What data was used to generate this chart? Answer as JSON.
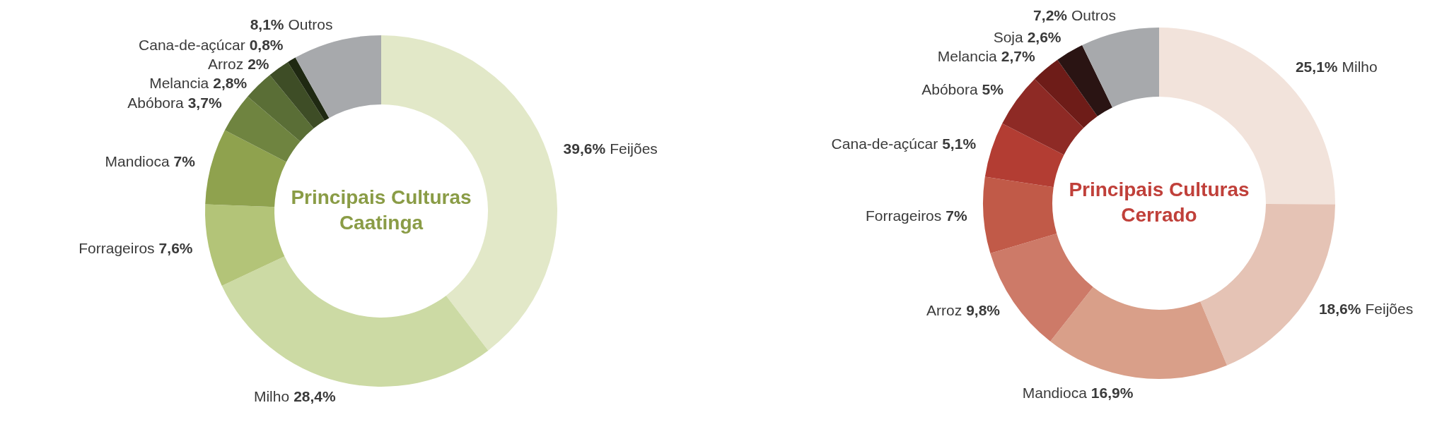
{
  "chart_data": [
    {
      "type": "donut",
      "title": "Principais Culturas",
      "subtitle": "Caatinga",
      "categories": [
        "Feijões",
        "Milho",
        "Forrageiros",
        "Mandioca",
        "Abóbora",
        "Melancia",
        "Arroz",
        "Cana-de-açúcar",
        "Outros"
      ],
      "values": [
        39.6,
        28.4,
        7.6,
        7,
        3.7,
        2.8,
        2,
        0.8,
        8.1
      ],
      "value_labels": [
        "39,6%",
        "28,4%",
        "7,6%",
        "7%",
        "3,7%",
        "2,8%",
        "2%",
        "0,8%",
        "8,1%"
      ],
      "colors": [
        "#e2e8c8",
        "#ccdaa4",
        "#b3c478",
        "#8fa24e",
        "#6f8440",
        "#5a6e36",
        "#3e4d26",
        "#1f2912",
        "#a7a9ac"
      ]
    },
    {
      "type": "donut",
      "title": "Principais Culturas",
      "subtitle": "Cerrado",
      "categories": [
        "Milho",
        "Feijões",
        "Mandioca",
        "Arroz",
        "Forrageiros",
        "Cana-de-açúcar",
        "Abóbora",
        "Melancia",
        "Soja",
        "Outros"
      ],
      "values": [
        25.1,
        18.6,
        16.9,
        9.8,
        7,
        5.1,
        5,
        2.7,
        2.6,
        7.2
      ],
      "value_labels": [
        "25,1%",
        "18,6%",
        "16,9%",
        "9,8%",
        "7%",
        "5,1%",
        "5%",
        "2,7%",
        "2,6%",
        "7,2%"
      ],
      "colors": [
        "#f2e3db",
        "#e5c3b5",
        "#d99f89",
        "#cd7a68",
        "#c15a48",
        "#b33d33",
        "#8e2a25",
        "#6e1c18",
        "#2a1413",
        "#a7a9ac"
      ]
    }
  ]
}
